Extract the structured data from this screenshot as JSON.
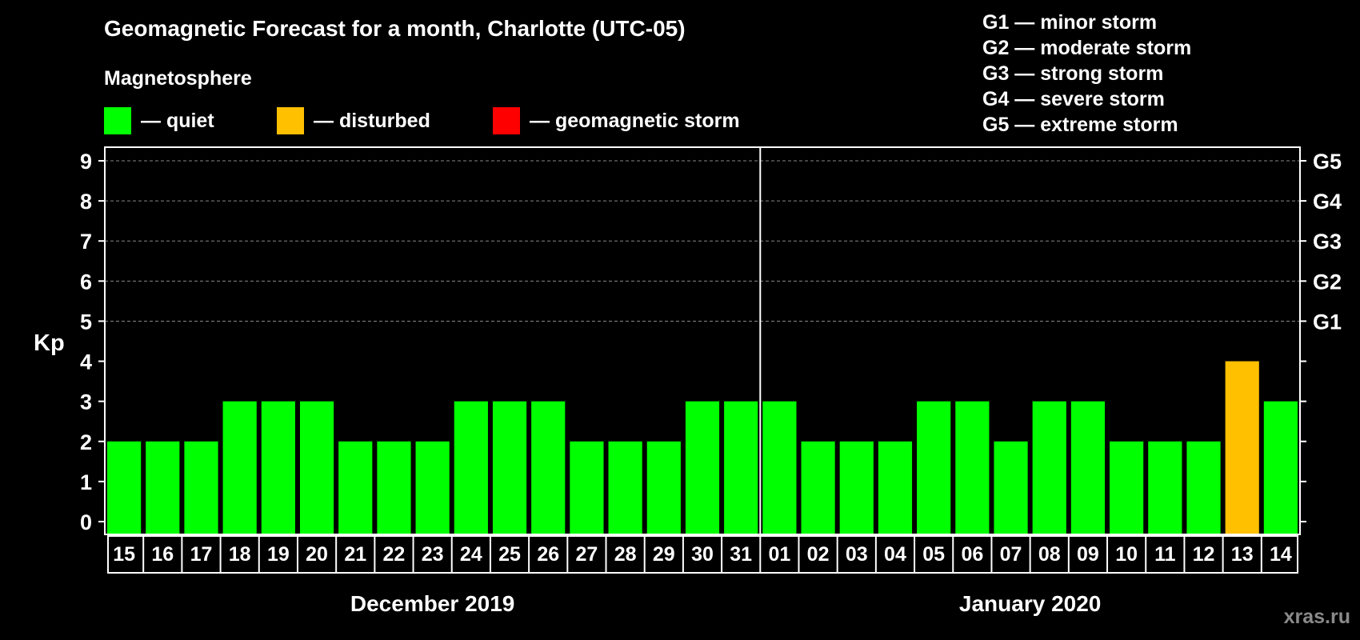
{
  "header": {
    "title": "Geomagnetic Forecast for a month, Charlotte (UTC-05)",
    "subtitle": "Magnetosphere"
  },
  "legend": [
    {
      "label": "— quiet",
      "color": "#00ff00"
    },
    {
      "label": "— disturbed",
      "color": "#ffc000"
    },
    {
      "label": "— geomagnetic storm",
      "color": "#ff0000"
    }
  ],
  "storm_scale": [
    "G1 — minor storm",
    "G2 — moderate storm",
    "G3 — strong storm",
    "G4 — severe storm",
    "G5 — extreme storm"
  ],
  "watermark": "xras.ru",
  "chart_data": {
    "type": "bar",
    "title": "Geomagnetic Forecast for a month, Charlotte (UTC-05)",
    "ylabel": "Kp",
    "ylim": [
      0,
      9
    ],
    "yticks": [
      "0",
      "1",
      "2",
      "3",
      "4",
      "5",
      "6",
      "7",
      "8",
      "9"
    ],
    "right_axis": [
      {
        "value": 5,
        "label": "G1"
      },
      {
        "value": 6,
        "label": "G2"
      },
      {
        "value": 7,
        "label": "G3"
      },
      {
        "value": 8,
        "label": "G4"
      },
      {
        "value": 9,
        "label": "G5"
      }
    ],
    "months": [
      {
        "label": "December 2019",
        "start": 0,
        "count": 17
      },
      {
        "label": "January 2020",
        "start": 17,
        "count": 14
      }
    ],
    "categories": [
      "15",
      "16",
      "17",
      "18",
      "19",
      "20",
      "21",
      "22",
      "23",
      "24",
      "25",
      "26",
      "27",
      "28",
      "29",
      "30",
      "31",
      "01",
      "02",
      "03",
      "04",
      "05",
      "06",
      "07",
      "08",
      "09",
      "10",
      "11",
      "12",
      "13",
      "14"
    ],
    "values": [
      2,
      2,
      2,
      3,
      3,
      3,
      2,
      2,
      2,
      3,
      3,
      3,
      2,
      2,
      2,
      3,
      3,
      3,
      2,
      2,
      2,
      3,
      3,
      2,
      3,
      3,
      2,
      2,
      2,
      4,
      3
    ],
    "colors": {
      "quiet": "#00ff00",
      "disturbed": "#ffc000",
      "storm": "#ff0000"
    }
  }
}
